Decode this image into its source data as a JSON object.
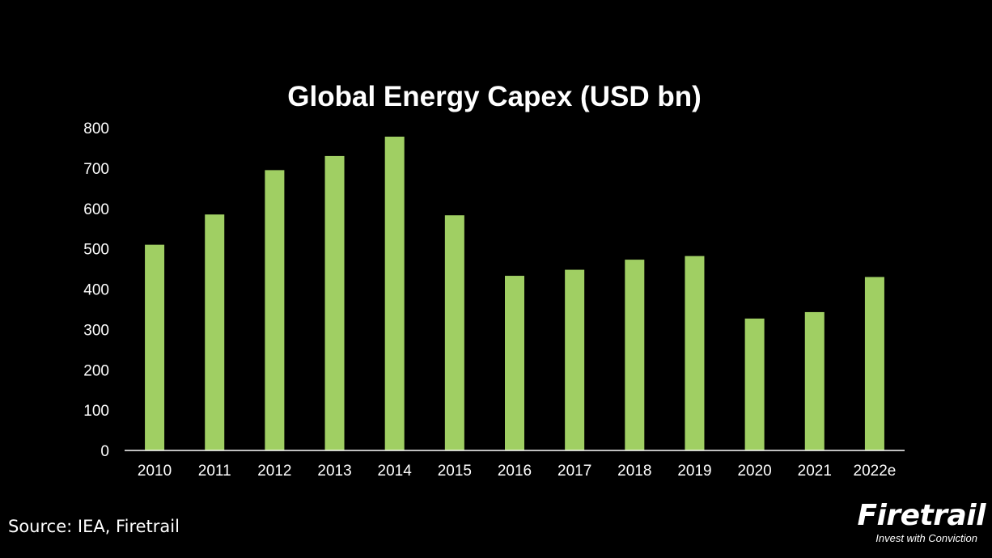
{
  "chart_data": {
    "type": "bar",
    "title": "Global Energy Capex (USD bn)",
    "categories": [
      "2010",
      "2011",
      "2012",
      "2013",
      "2014",
      "2015",
      "2016",
      "2017",
      "2018",
      "2019",
      "2020",
      "2021",
      "2022e"
    ],
    "series": [
      {
        "values": [
          510,
          585,
          695,
          730,
          778,
          583,
          433,
          448,
          473,
          482,
          327,
          343,
          430
        ]
      }
    ],
    "ylim": [
      0,
      800
    ],
    "yticks": [
      0,
      100,
      200,
      300,
      400,
      500,
      600,
      700,
      800
    ],
    "grid": false,
    "bar_color": "#a0cf63",
    "axis_color": "#ffffff",
    "background": "#000000"
  },
  "footer": {
    "source": "Source: IEA, Firetrail",
    "logo_text": "Firetrail",
    "logo_tagline": "Invest with Conviction"
  }
}
